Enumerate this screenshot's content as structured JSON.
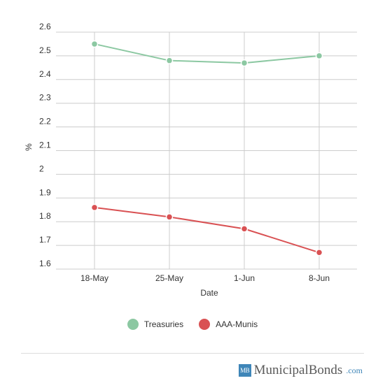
{
  "chart_data": {
    "type": "line",
    "categories": [
      "18-May",
      "25-May",
      "1-Jun",
      "8-Jun"
    ],
    "series": [
      {
        "name": "Treasuries",
        "values": [
          2.55,
          2.48,
          2.47,
          2.5
        ],
        "color": "#8cc8a2"
      },
      {
        "name": "AAA-Munis",
        "values": [
          1.86,
          1.82,
          1.77,
          1.67
        ],
        "color": "#d95153"
      }
    ],
    "xlabel": "Date",
    "ylabel": "%",
    "ylim": [
      1.6,
      2.6
    ],
    "yticks": [
      "1.6",
      "1.7",
      "1.8",
      "1.9",
      "2",
      "2.1",
      "2.2",
      "2.3",
      "2.4",
      "2.5",
      "2.6"
    ],
    "grid": true,
    "legend_position": "bottom"
  },
  "legend": {
    "items": [
      {
        "label": "Treasuries",
        "color": "#8cc8a2"
      },
      {
        "label": "AAA-Munis",
        "color": "#d95153"
      }
    ]
  },
  "footer": {
    "brand_mark": "MB",
    "brand_name": "MunicipalBonds",
    "brand_tld": ".com",
    "brand_color": "#3f86b8"
  }
}
